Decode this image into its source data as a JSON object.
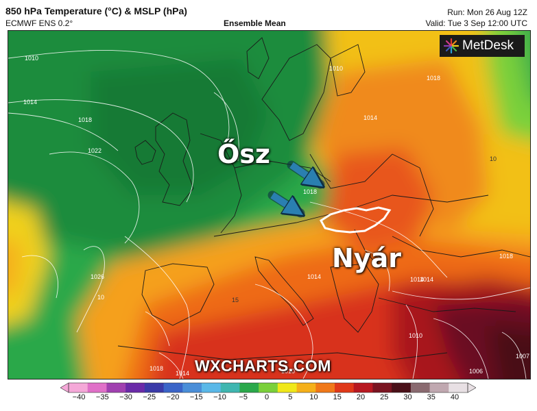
{
  "header": {
    "title": "850 hPa Temperature (°C) & MSLP (hPa)",
    "subtitle": "ECMWF ENS 0.2°",
    "mean_label": "Ensemble Mean",
    "run": "Run: Mon 26 Aug 12Z",
    "valid": "Valid: Tue 3 Sep 12:00 UTC"
  },
  "logo": {
    "text": "MetDesk",
    "icon": "metdesk-burst-icon"
  },
  "annotations": {
    "autumn_label": "Ősz",
    "summer_label": "Nyár",
    "arrow_icon": "arrow-icon",
    "arrow_color": "#2a7fb0",
    "outline_color": "#ffffff"
  },
  "watermark": "WXCHARTS.COM",
  "isobars": {
    "labels": [
      "1010",
      "1014",
      "1018",
      "1022",
      "1026",
      "10",
      "1018",
      "1010",
      "1014",
      "1018",
      "1014",
      "1018",
      "1014",
      "1010",
      "1007",
      "1006",
      "1018",
      "1014",
      "1010",
      "10",
      "15",
      "1014"
    ]
  },
  "colorbar": {
    "ticks": [
      "−40",
      "−35",
      "−30",
      "−25",
      "−20",
      "−15",
      "−10",
      "−5",
      "0",
      "5",
      "10",
      "15",
      "20",
      "25",
      "30",
      "35",
      "40"
    ],
    "colors": [
      "#f5a8d8",
      "#e070c8",
      "#a040b0",
      "#6a2aa8",
      "#3a3aa8",
      "#3a64c8",
      "#4a8ed8",
      "#5ab8e8",
      "#3fb6b0",
      "#2aa84a",
      "#7ad03a",
      "#f0e81a",
      "#f5b01a",
      "#f07818",
      "#e03818",
      "#b81820",
      "#7a1420",
      "#4a1018",
      "#8a6a70",
      "#c0a8b0",
      "#e8e0e4"
    ]
  }
}
